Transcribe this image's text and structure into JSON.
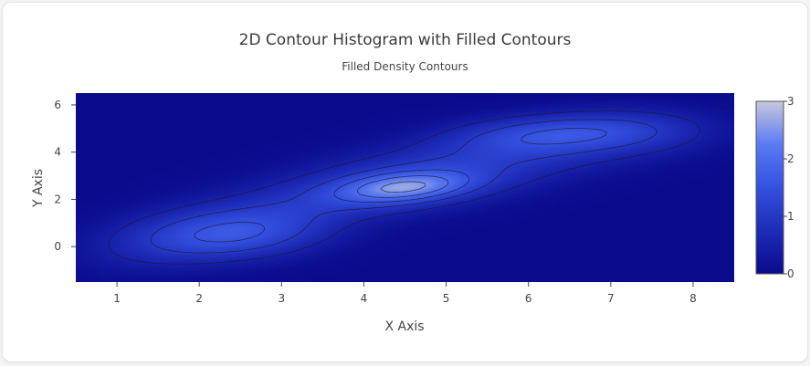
{
  "chart_data": {
    "type": "heatmap",
    "subtype": "2d-contour-histogram-filled",
    "title": "2D Contour Histogram with Filled Contours",
    "subtitle": "Filled Density Contours",
    "xlabel": "X Axis",
    "ylabel": "Y Axis",
    "xlim": [
      0.5,
      8.5
    ],
    "ylim": [
      -1.5,
      6.5
    ],
    "x_ticks": [
      1,
      2,
      3,
      4,
      5,
      6,
      7,
      8
    ],
    "y_ticks": [
      0,
      2,
      4,
      6
    ],
    "colorscale": {
      "min": 0,
      "max": 3,
      "ticks": [
        0,
        1,
        2,
        3
      ],
      "colors": [
        "#0a0a8c",
        "#1e2cb8",
        "#3450e0",
        "#5a7af2",
        "#c8c8dc"
      ]
    },
    "contour_levels": [
      0.5,
      1.0,
      1.5,
      2.0,
      2.5
    ],
    "density_peaks": [
      {
        "x": 4.5,
        "y": 2.5,
        "value": 2.9
      },
      {
        "x": 2.5,
        "y": 0.5,
        "value": 1.9
      },
      {
        "x": 6.5,
        "y": 4.8,
        "value": 1.9
      }
    ],
    "grid": false,
    "legend": "none"
  }
}
